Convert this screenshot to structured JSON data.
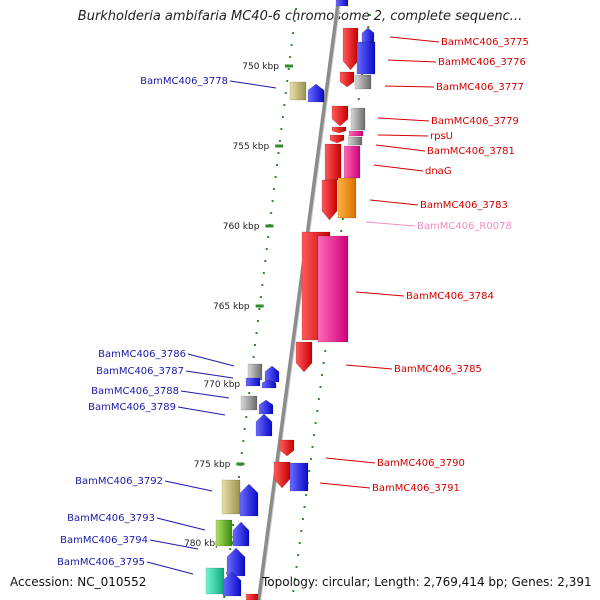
{
  "title": "Burkholderia ambifaria MC40-6 chromosome 2, complete sequenc...",
  "accession": "Accession: NC_010552",
  "topology": "Topology: circular; Length: 2,769,414 bp; Genes: 2,391",
  "scale_labels": [
    "750 kbp",
    "755 kbp",
    "760 kbp",
    "765 kbp",
    "770 kbp",
    "775 kbp",
    "780 kbp"
  ],
  "right_labels": [
    {
      "text": "BamMC406_3775",
      "color": "#d40000"
    },
    {
      "text": "BamMC406_3776",
      "color": "#d40000"
    },
    {
      "text": "BamMC406_3777",
      "color": "#d40000"
    },
    {
      "text": "BamMC406_3779",
      "color": "#d40000"
    },
    {
      "text": "rpsU",
      "color": "#d40000"
    },
    {
      "text": "BamMC406_3781",
      "color": "#d40000"
    },
    {
      "text": "dnaG",
      "color": "#d40000"
    },
    {
      "text": "BamMC406_3783",
      "color": "#d40000"
    },
    {
      "text": "BamMC406_R0078",
      "color": "#f08ec0"
    },
    {
      "text": "BamMC406_3784",
      "color": "#d40000"
    },
    {
      "text": "BamMC406_3785",
      "color": "#d40000"
    },
    {
      "text": "BamMC406_3790",
      "color": "#d40000"
    },
    {
      "text": "BamMC406_3791",
      "color": "#d40000"
    }
  ],
  "left_labels": [
    {
      "text": "BamMC406_3778",
      "color": "#1a1aaa"
    },
    {
      "text": "BamMC406_3786",
      "color": "#1a1aaa"
    },
    {
      "text": "BamMC406_3787",
      "color": "#1a1aaa"
    },
    {
      "text": "BamMC406_3788",
      "color": "#1a1aaa"
    },
    {
      "text": "BamMC406_3789",
      "color": "#1a1aaa"
    },
    {
      "text": "BamMC406_3792",
      "color": "#1a1aaa"
    },
    {
      "text": "BamMC406_3793",
      "color": "#1a1aaa"
    },
    {
      "text": "BamMC406_3794",
      "color": "#1a1aaa"
    },
    {
      "text": "BamMC406_3795",
      "color": "#1a1aaa"
    }
  ],
  "colors": {
    "backbone": "#8c8c8c",
    "scale_dots": "#2e8b2e",
    "forward_red": "#ee1111",
    "reverse_blue": "#1414e6",
    "rna_pink": "#f0148c",
    "orange": "#f08a00",
    "gray": "#888888",
    "khaki": "#c8c080",
    "green": "#78b428",
    "teal": "#28d2a0"
  }
}
